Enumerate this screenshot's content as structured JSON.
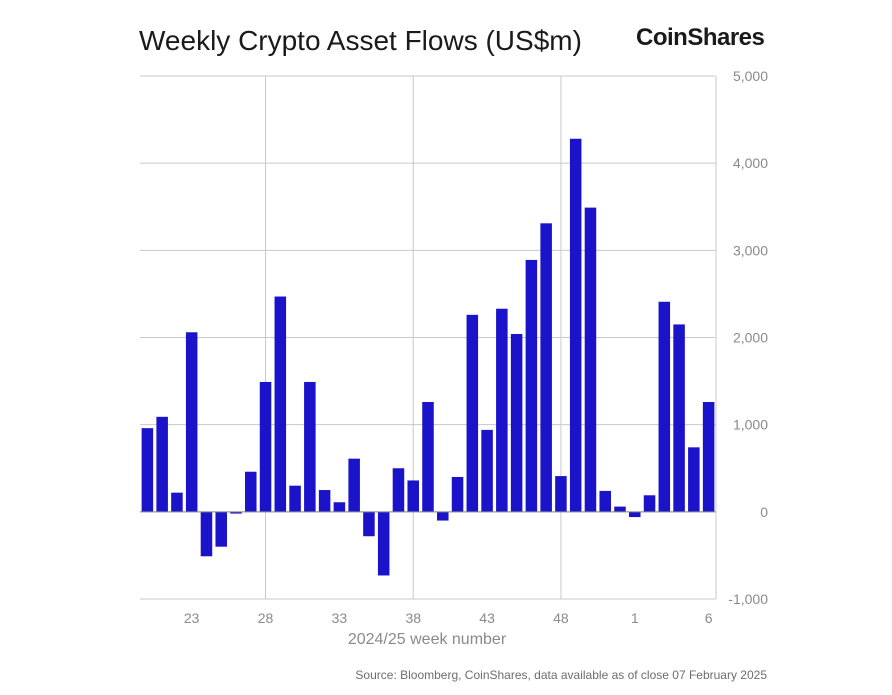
{
  "header": {
    "title": "Weekly Crypto Asset Flows (US$m)",
    "brand": "CoinShares"
  },
  "footer": {
    "source": "Source: Bloomberg, CoinShares, data available as of close 07 February 2025"
  },
  "colors": {
    "bar": "#1a13c9",
    "grid": "#c8c8c8",
    "axis": "#8a8a8a"
  },
  "chart_data": {
    "type": "bar",
    "title": "Weekly Crypto Asset Flows (US$m)",
    "xlabel": "2024/25 week number",
    "ylabel": "",
    "ylim": [
      -1000,
      5000
    ],
    "yticks": [
      5000,
      4000,
      3000,
      2000,
      1000,
      0,
      -1000
    ],
    "ytick_labels": [
      "5,000",
      "4,000",
      "3,000",
      "2,000",
      "1,000",
      "0",
      "-1,000"
    ],
    "xtick_labels": [
      "23",
      "28",
      "33",
      "38",
      "43",
      "48",
      "1",
      "6"
    ],
    "categories": [
      "20",
      "21",
      "22",
      "23",
      "24",
      "25",
      "26",
      "27",
      "28",
      "29",
      "30",
      "31",
      "32",
      "33",
      "34",
      "35",
      "36",
      "37",
      "38",
      "39",
      "40",
      "41",
      "42",
      "43",
      "44",
      "45",
      "46",
      "47",
      "48",
      "49",
      "50",
      "51",
      "52",
      "1",
      "2",
      "3",
      "4",
      "5",
      "6"
    ],
    "values": [
      960,
      1090,
      220,
      2060,
      -510,
      -400,
      -20,
      460,
      1490,
      2470,
      300,
      1490,
      250,
      110,
      610,
      -280,
      -730,
      500,
      360,
      1260,
      -100,
      400,
      2260,
      940,
      2330,
      2040,
      2890,
      3310,
      410,
      4280,
      3490,
      240,
      60,
      -60,
      190,
      2410,
      2150,
      740,
      1260
    ],
    "grid": true,
    "legend": "none"
  }
}
